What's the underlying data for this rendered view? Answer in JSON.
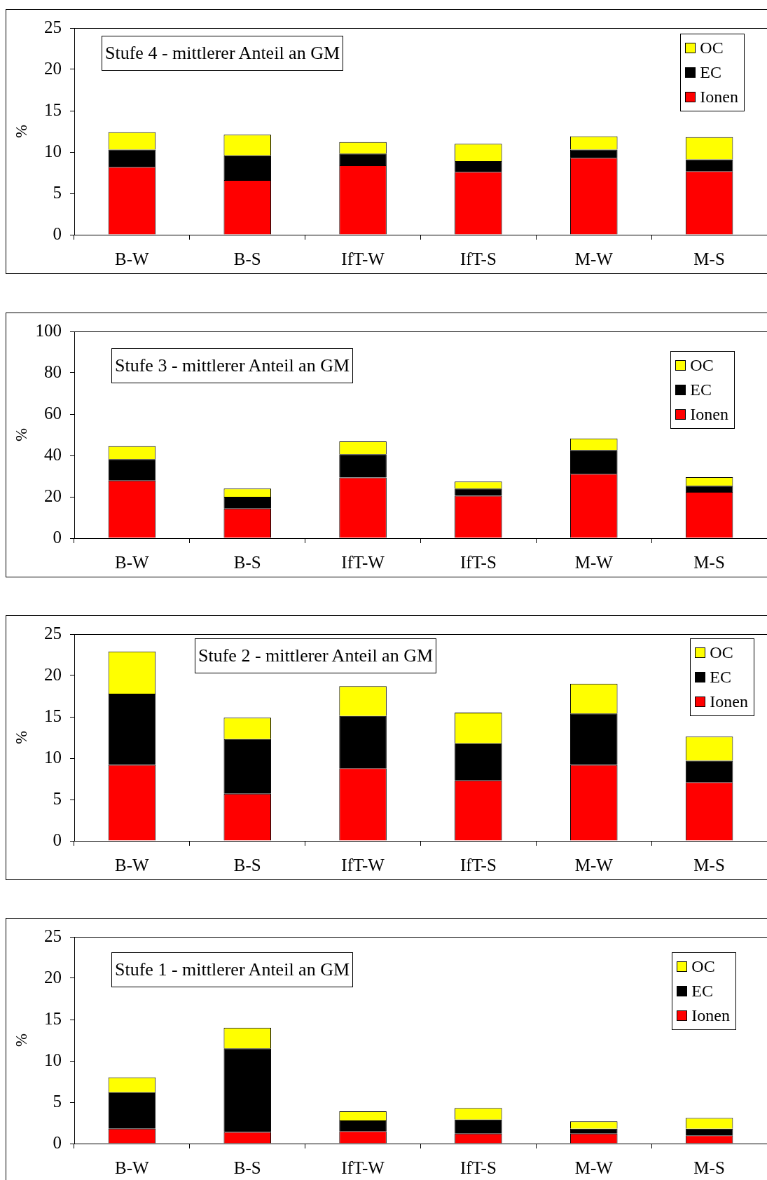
{
  "chart_data": [
    {
      "type": "bar",
      "stacked": true,
      "title": "Stufe 4 - mittlerer Anteil an GM",
      "ylabel": "%",
      "legend": "top right",
      "categories": [
        "B-W",
        "B-S",
        "IfT-W",
        "IfT-S",
        "M-W",
        "M-S"
      ],
      "series": [
        {
          "name": "Ionen",
          "color": "#ff0000",
          "values": [
            8.2,
            6.6,
            8.4,
            7.6,
            9.3,
            7.7
          ]
        },
        {
          "name": "EC",
          "color": "#000000",
          "values": [
            2.1,
            3.0,
            1.4,
            1.3,
            1.0,
            1.4
          ]
        },
        {
          "name": "OC",
          "color": "#ffff00",
          "values": [
            2.1,
            2.5,
            1.4,
            2.1,
            1.6,
            2.7
          ]
        }
      ],
      "ylim": [
        0,
        25
      ],
      "yticks": [
        0,
        5,
        10,
        15,
        20,
        25
      ]
    },
    {
      "type": "bar",
      "stacked": true,
      "title": "Stufe 3 - mittlerer Anteil an GM",
      "ylabel": "%",
      "legend": "top right",
      "categories": [
        "B-W",
        "B-S",
        "IfT-W",
        "IfT-S",
        "M-W",
        "M-S"
      ],
      "series": [
        {
          "name": "Ionen",
          "color": "#ff0000",
          "values": [
            27.9,
            14.3,
            29.3,
            20.5,
            31.1,
            22.4
          ]
        },
        {
          "name": "EC",
          "color": "#000000",
          "values": [
            10.3,
            5.7,
            11.3,
            3.5,
            11.5,
            2.9
          ]
        },
        {
          "name": "OC",
          "color": "#ffff00",
          "values": [
            6.3,
            4.0,
            6.2,
            3.4,
            5.6,
            4.2
          ]
        }
      ],
      "ylim": [
        0,
        100
      ],
      "yticks": [
        0,
        20,
        40,
        60,
        80,
        100
      ]
    },
    {
      "type": "bar",
      "stacked": true,
      "title": "Stufe 2 - mittlerer Anteil an GM",
      "ylabel": "%",
      "legend": "top right",
      "categories": [
        "B-W",
        "B-S",
        "IfT-W",
        "IfT-S",
        "M-W",
        "M-S"
      ],
      "series": [
        {
          "name": "Ionen",
          "color": "#ff0000",
          "values": [
            9.2,
            5.7,
            8.8,
            7.3,
            9.2,
            7.1
          ]
        },
        {
          "name": "EC",
          "color": "#000000",
          "values": [
            8.6,
            6.6,
            6.3,
            4.5,
            6.2,
            2.6
          ]
        },
        {
          "name": "OC",
          "color": "#ffff00",
          "values": [
            5.1,
            2.6,
            3.6,
            3.7,
            3.6,
            2.9
          ]
        }
      ],
      "ylim": [
        0,
        25
      ],
      "yticks": [
        0,
        5,
        10,
        15,
        20,
        25
      ]
    },
    {
      "type": "bar",
      "stacked": true,
      "title": "Stufe 1 - mittlerer Anteil an GM",
      "ylabel": "%",
      "legend": "top right",
      "categories": [
        "B-W",
        "B-S",
        "IfT-W",
        "IfT-S",
        "M-W",
        "M-S"
      ],
      "series": [
        {
          "name": "Ionen",
          "color": "#ff0000",
          "values": [
            1.8,
            1.4,
            1.5,
            1.2,
            1.2,
            1.0
          ]
        },
        {
          "name": "EC",
          "color": "#000000",
          "values": [
            4.4,
            10.1,
            1.3,
            1.7,
            0.6,
            0.8
          ]
        },
        {
          "name": "OC",
          "color": "#ffff00",
          "values": [
            1.8,
            2.5,
            1.1,
            1.4,
            0.9,
            1.3
          ]
        }
      ],
      "ylim": [
        0,
        25
      ],
      "yticks": [
        0,
        5,
        10,
        15,
        20,
        25
      ]
    }
  ]
}
